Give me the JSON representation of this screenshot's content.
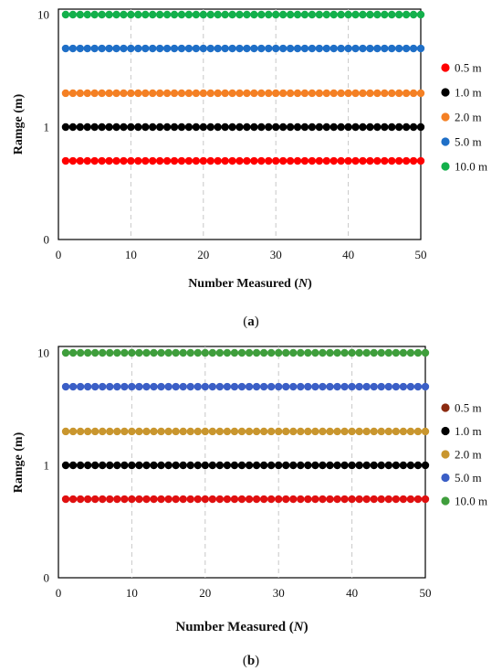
{
  "chart_data": [
    {
      "type": "scatter",
      "panel_label": "(a)",
      "panel_label_bold": "a",
      "xlabel": "Number Measured (",
      "xlabel_italic": "N",
      "xlabel_end": ")",
      "ylabel": "Ramge  (m)",
      "xlim": [
        0,
        50
      ],
      "xticks": [
        "0",
        "10",
        "20",
        "30",
        "40",
        "50"
      ],
      "yticks": [
        "0",
        "1",
        "10"
      ],
      "y_scale": "log",
      "grid": "vertical dashed",
      "legend_position": "right",
      "x_start": 1,
      "x_end": 50,
      "series": [
        {
          "name": "0.5 m",
          "color": "#ff0000",
          "value": 0.5
        },
        {
          "name": "1.0 m",
          "color": "#000000",
          "value": 1.0
        },
        {
          "name": "2.0 m",
          "color": "#f48024",
          "value": 2.0
        },
        {
          "name": "5.0 m",
          "color": "#1f6fc7",
          "value": 5.0
        },
        {
          "name": "10.0 m",
          "color": "#13b04b",
          "value": 10.0
        }
      ]
    },
    {
      "type": "scatter",
      "panel_label": "(b)",
      "panel_label_bold": "b",
      "xlabel": "Number Measured (",
      "xlabel_italic": "N",
      "xlabel_end": ")",
      "ylabel": "Ramge  (m)",
      "xlim": [
        0,
        50
      ],
      "xticks": [
        "0",
        "10",
        "20",
        "30",
        "40",
        "50"
      ],
      "yticks": [
        "0",
        "1",
        "10"
      ],
      "y_scale": "log",
      "grid": "vertical dashed",
      "legend_position": "right",
      "x_start": 1,
      "x_end": 50,
      "series": [
        {
          "name": "0.5 m",
          "color": "#e01010",
          "legend_color": "#8b2a10",
          "value": 0.5
        },
        {
          "name": "1.0 m",
          "color": "#000000",
          "value": 1.0
        },
        {
          "name": "2.0 m",
          "color": "#c9962e",
          "value": 2.0
        },
        {
          "name": "5.0 m",
          "color": "#3b5fc6",
          "value": 5.0
        },
        {
          "name": "10.0 m",
          "color": "#3f9e3c",
          "value": 10.0
        }
      ]
    }
  ]
}
